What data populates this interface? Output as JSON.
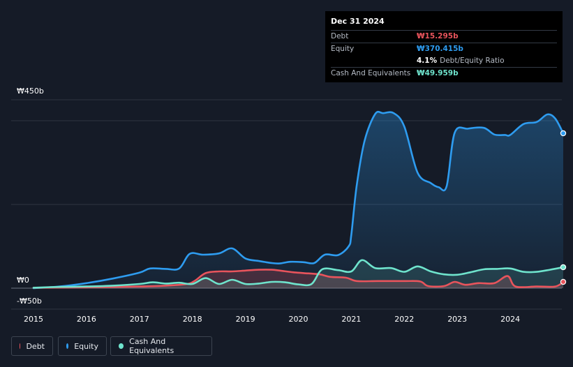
{
  "chart_data": {
    "type": "area",
    "currency": "₩",
    "ylim": [
      -50,
      450
    ],
    "y_tick_labels": [
      {
        "value": 450,
        "label": "₩450b"
      },
      {
        "value": 0,
        "label": "₩0"
      },
      {
        "value": -50,
        "label": "-₩50b"
      }
    ],
    "x_ticks": [
      2015,
      2016,
      2017,
      2018,
      2019,
      2020,
      2021,
      2022,
      2023,
      2024
    ],
    "x_range": [
      2014.6,
      2025.0
    ],
    "series": [
      {
        "name": "Equity",
        "color": "#2e9cf0",
        "points": [
          [
            2015.0,
            0
          ],
          [
            2015.5,
            4
          ],
          [
            2016.0,
            12
          ],
          [
            2016.5,
            23
          ],
          [
            2017.0,
            37
          ],
          [
            2017.2,
            47
          ],
          [
            2017.5,
            46
          ],
          [
            2017.75,
            47
          ],
          [
            2017.95,
            82
          ],
          [
            2018.2,
            80
          ],
          [
            2018.5,
            83
          ],
          [
            2018.75,
            95
          ],
          [
            2019.0,
            71
          ],
          [
            2019.25,
            65
          ],
          [
            2019.5,
            60
          ],
          [
            2019.65,
            59
          ],
          [
            2019.85,
            63
          ],
          [
            2020.1,
            62
          ],
          [
            2020.3,
            60
          ],
          [
            2020.5,
            80
          ],
          [
            2020.75,
            79
          ],
          [
            2020.95,
            100
          ],
          [
            2021.0,
            128
          ],
          [
            2021.1,
            244
          ],
          [
            2021.25,
            352
          ],
          [
            2021.45,
            416
          ],
          [
            2021.6,
            418
          ],
          [
            2021.8,
            418
          ],
          [
            2022.0,
            386
          ],
          [
            2022.25,
            276
          ],
          [
            2022.5,
            251
          ],
          [
            2022.65,
            241
          ],
          [
            2022.8,
            244
          ],
          [
            2022.95,
            371
          ],
          [
            2023.2,
            381
          ],
          [
            2023.5,
            383
          ],
          [
            2023.7,
            367
          ],
          [
            2023.9,
            366
          ],
          [
            2024.0,
            366
          ],
          [
            2024.25,
            392
          ],
          [
            2024.5,
            397
          ],
          [
            2024.7,
            415
          ],
          [
            2024.85,
            405
          ],
          [
            2025.0,
            370
          ]
        ]
      },
      {
        "name": "Debt",
        "color": "#e8545c",
        "points": [
          [
            2015.0,
            1
          ],
          [
            2016.0,
            2
          ],
          [
            2017.0,
            4
          ],
          [
            2017.5,
            6
          ],
          [
            2017.9,
            10
          ],
          [
            2018.05,
            18
          ],
          [
            2018.25,
            36
          ],
          [
            2018.5,
            40
          ],
          [
            2018.75,
            40
          ],
          [
            2019.0,
            42
          ],
          [
            2019.25,
            44
          ],
          [
            2019.5,
            44
          ],
          [
            2019.65,
            42
          ],
          [
            2019.9,
            38
          ],
          [
            2020.1,
            36
          ],
          [
            2020.4,
            33
          ],
          [
            2020.6,
            27
          ],
          [
            2020.9,
            25
          ],
          [
            2021.1,
            17
          ],
          [
            2021.5,
            17
          ],
          [
            2022.0,
            17
          ],
          [
            2022.3,
            16
          ],
          [
            2022.45,
            5
          ],
          [
            2022.75,
            5
          ],
          [
            2022.95,
            15
          ],
          [
            2023.15,
            8
          ],
          [
            2023.4,
            12
          ],
          [
            2023.7,
            12
          ],
          [
            2023.95,
            29
          ],
          [
            2024.1,
            4
          ],
          [
            2024.5,
            4
          ],
          [
            2024.85,
            4
          ],
          [
            2025.0,
            15
          ]
        ]
      },
      {
        "name": "Cash And Equivalents",
        "color": "#6fe4cd",
        "points": [
          [
            2015.0,
            1
          ],
          [
            2015.5,
            3
          ],
          [
            2016.0,
            4
          ],
          [
            2016.5,
            6
          ],
          [
            2017.0,
            10
          ],
          [
            2017.25,
            14
          ],
          [
            2017.5,
            11
          ],
          [
            2017.75,
            13
          ],
          [
            2018.0,
            10
          ],
          [
            2018.25,
            24
          ],
          [
            2018.5,
            10
          ],
          [
            2018.75,
            20
          ],
          [
            2019.0,
            10
          ],
          [
            2019.25,
            11
          ],
          [
            2019.5,
            15
          ],
          [
            2019.75,
            14
          ],
          [
            2020.0,
            9
          ],
          [
            2020.25,
            10
          ],
          [
            2020.45,
            45
          ],
          [
            2020.75,
            43
          ],
          [
            2021.0,
            40
          ],
          [
            2021.2,
            67
          ],
          [
            2021.45,
            48
          ],
          [
            2021.75,
            48
          ],
          [
            2022.0,
            39
          ],
          [
            2022.25,
            52
          ],
          [
            2022.5,
            40
          ],
          [
            2022.75,
            33
          ],
          [
            2023.0,
            32
          ],
          [
            2023.25,
            38
          ],
          [
            2023.5,
            45
          ],
          [
            2023.75,
            46
          ],
          [
            2024.0,
            47
          ],
          [
            2024.25,
            39
          ],
          [
            2024.5,
            39
          ],
          [
            2024.75,
            44
          ],
          [
            2025.0,
            50
          ]
        ]
      }
    ]
  },
  "tooltip": {
    "date": "Dec 31 2024",
    "debt_label": "Debt",
    "debt_value": "₩15.295b",
    "equity_label": "Equity",
    "equity_value": "₩370.415b",
    "ratio_value": "4.1%",
    "ratio_label": "Debt/Equity Ratio",
    "cash_label": "Cash And Equivalents",
    "cash_value": "₩49.959b"
  },
  "legend": [
    {
      "label": "Debt",
      "color": "#e8545c"
    },
    {
      "label": "Equity",
      "color": "#2e9cf0"
    },
    {
      "label": "Cash And Equivalents",
      "color": "#6fe4cd"
    }
  ]
}
